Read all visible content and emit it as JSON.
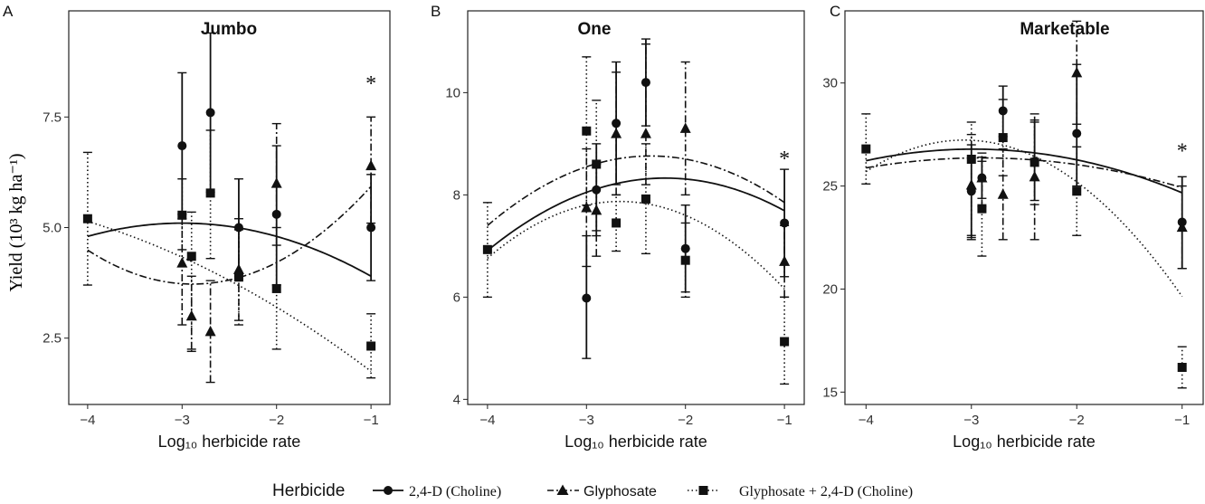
{
  "figure": {
    "y_axis_label": "Yield (10³ kg ha⁻¹)",
    "x_axis_label": "Log₁₀ herbicide rate"
  },
  "legend": {
    "title": "Herbicide",
    "entries": [
      {
        "label": "2,4-D (Choline)",
        "marker": "circle",
        "line": "solid"
      },
      {
        "label": "Glyphosate",
        "marker": "triangle",
        "line": "dashdot"
      },
      {
        "label": "Glyphosate + 2,4-D (Choline)",
        "marker": "square",
        "line": "dotted"
      }
    ]
  },
  "chart_data": [
    {
      "type": "scatter",
      "panel_letter": "A",
      "title": "Jumbo",
      "xlabel": "Log₁₀ herbicide rate",
      "ylabel": "Yield (10³ kg ha⁻¹)",
      "xlim": [
        -4.2,
        -0.8
      ],
      "ylim": [
        1.0,
        9.9
      ],
      "xticks": [
        -4,
        -3,
        -2,
        -1
      ],
      "xtick_labels": [
        "−4",
        "−3",
        "−2",
        "−1"
      ],
      "yticks": [
        2.5,
        5.0,
        7.5
      ],
      "ytick_labels": [
        "2.5",
        "5.0",
        "7.5"
      ],
      "annotations": [
        {
          "text": "*",
          "x": -1.0,
          "y": 8.3
        }
      ],
      "series": [
        {
          "name": "2,4-D (Choline)",
          "marker": "circle",
          "line": "solid",
          "points": [
            {
              "x": -3.0,
              "y": 6.85,
              "lo": 5.2,
              "hi": 8.5
            },
            {
              "x": -2.7,
              "y": 7.6,
              "lo": 5.8,
              "hi": 9.4
            },
            {
              "x": -2.4,
              "y": 5.0,
              "lo": 3.9,
              "hi": 6.1
            },
            {
              "x": -2.0,
              "y": 5.3,
              "lo": 3.7,
              "hi": 6.85
            },
            {
              "x": -1.0,
              "y": 5.0,
              "lo": 3.8,
              "hi": 6.2
            }
          ],
          "fit": [
            -0.3,
            -1.8,
            2.4
          ]
        },
        {
          "name": "Glyphosate",
          "marker": "triangle",
          "line": "dashdot",
          "points": [
            {
              "x": -3.0,
              "y": 4.2,
              "lo": 2.8,
              "hi": 5.3
            },
            {
              "x": -2.9,
              "y": 3.0,
              "lo": 2.25,
              "hi": 3.9
            },
            {
              "x": -2.7,
              "y": 2.65,
              "lo": 1.5,
              "hi": 3.8
            },
            {
              "x": -2.4,
              "y": 4.05,
              "lo": 2.9,
              "hi": 5.2
            },
            {
              "x": -2.0,
              "y": 6.0,
              "lo": 4.6,
              "hi": 7.35
            },
            {
              "x": -1.0,
              "y": 6.4,
              "lo": 5.1,
              "hi": 7.5
            }
          ],
          "fit": [
            0.62,
            3.58,
            8.89
          ]
        },
        {
          "name": "Glyphosate + 2,4-D (Choline)",
          "marker": "square",
          "line": "dotted",
          "points": [
            {
              "x": -4.0,
              "y": 5.2,
              "lo": 3.7,
              "hi": 6.7
            },
            {
              "x": -3.0,
              "y": 5.28,
              "lo": 4.5,
              "hi": 6.1
            },
            {
              "x": -2.9,
              "y": 4.35,
              "lo": 2.2,
              "hi": 5.35
            },
            {
              "x": -2.7,
              "y": 5.78,
              "lo": 4.3,
              "hi": 7.2
            },
            {
              "x": -2.4,
              "y": 3.88,
              "lo": 2.8,
              "hi": 4.95
            },
            {
              "x": -2.0,
              "y": 3.62,
              "lo": 2.25,
              "hi": 5.0
            },
            {
              "x": -1.0,
              "y": 2.32,
              "lo": 1.6,
              "hi": 3.05
            }
          ],
          "fit": [
            -0.16,
            -1.93,
            -0.02
          ]
        }
      ]
    },
    {
      "type": "scatter",
      "panel_letter": "B",
      "title": "One",
      "xlabel": "Log₁₀ herbicide rate",
      "ylabel": "",
      "xlim": [
        -4.2,
        -0.8
      ],
      "ylim": [
        3.9,
        11.6
      ],
      "xticks": [
        -4,
        -3,
        -2,
        -1
      ],
      "xtick_labels": [
        "−4",
        "−3",
        "−2",
        "−1"
      ],
      "yticks": [
        4,
        6,
        8,
        10
      ],
      "ytick_labels": [
        "4",
        "6",
        "8",
        "10"
      ],
      "annotations": [
        {
          "text": "*",
          "x": -1.0,
          "y": 8.75
        }
      ],
      "series": [
        {
          "name": "2,4-D (Choline)",
          "marker": "circle",
          "line": "solid",
          "points": [
            {
              "x": -3.0,
              "y": 5.98,
              "lo": 4.8,
              "hi": 7.2
            },
            {
              "x": -2.9,
              "y": 8.1,
              "lo": 7.2,
              "hi": 9.0
            },
            {
              "x": -2.7,
              "y": 9.4,
              "lo": 8.2,
              "hi": 10.6
            },
            {
              "x": -2.4,
              "y": 10.2,
              "lo": 9.35,
              "hi": 11.05
            },
            {
              "x": -2.0,
              "y": 6.95,
              "lo": 6.1,
              "hi": 7.8
            },
            {
              "x": -1.0,
              "y": 7.45,
              "lo": 6.4,
              "hi": 8.5
            }
          ],
          "fit": [
            -0.44,
            -1.94,
            6.19
          ]
        },
        {
          "name": "Glyphosate",
          "marker": "triangle",
          "line": "dashdot",
          "points": [
            {
              "x": -3.0,
              "y": 7.75,
              "lo": 6.6,
              "hi": 8.9
            },
            {
              "x": -2.9,
              "y": 7.7,
              "lo": 6.8,
              "hi": 8.6
            },
            {
              "x": -2.7,
              "y": 9.2,
              "lo": 8.0,
              "hi": 10.4
            },
            {
              "x": -2.4,
              "y": 9.2,
              "lo": 8.2,
              "hi": 10.95
            },
            {
              "x": -2.0,
              "y": 9.3,
              "lo": 8.0,
              "hi": 10.6
            },
            {
              "x": -1.0,
              "y": 6.7,
              "lo": 6.0,
              "hi": 7.4
            }
          ],
          "fit": [
            -0.5,
            -2.35,
            6.0
          ]
        },
        {
          "name": "Glyphosate + 2,4-D (Choline)",
          "marker": "square",
          "line": "dotted",
          "points": [
            {
              "x": -4.0,
              "y": 6.93,
              "lo": 6.0,
              "hi": 7.85
            },
            {
              "x": -3.0,
              "y": 9.25,
              "lo": 7.8,
              "hi": 10.7
            },
            {
              "x": -2.9,
              "y": 8.6,
              "lo": 7.3,
              "hi": 9.85
            },
            {
              "x": -2.7,
              "y": 7.45,
              "lo": 6.9,
              "hi": 8.0
            },
            {
              "x": -2.4,
              "y": 7.92,
              "lo": 6.85,
              "hi": 9.0
            },
            {
              "x": -2.0,
              "y": 6.72,
              "lo": 6.0,
              "hi": 7.45
            },
            {
              "x": -1.0,
              "y": 5.13,
              "lo": 4.3,
              "hi": 6.0
            }
          ],
          "fit": [
            -0.62,
            -3.3,
            3.48
          ]
        }
      ]
    },
    {
      "type": "scatter",
      "panel_letter": "C",
      "title": "Marketable",
      "xlabel": "Log₁₀ herbicide rate",
      "ylabel": "",
      "xlim": [
        -4.2,
        -0.8
      ],
      "ylim": [
        14.4,
        33.5
      ],
      "xticks": [
        -4,
        -3,
        -2,
        -1
      ],
      "xtick_labels": [
        "−4",
        "−3",
        "−2",
        "−1"
      ],
      "yticks": [
        15,
        20,
        25,
        30
      ],
      "ytick_labels": [
        "15",
        "20",
        "25",
        "30"
      ],
      "annotations": [
        {
          "text": "*",
          "x": -1.0,
          "y": 26.8
        }
      ],
      "series": [
        {
          "name": "2,4-D (Choline)",
          "marker": "circle",
          "line": "solid",
          "points": [
            {
              "x": -3.0,
              "y": 24.75,
              "lo": 22.5,
              "hi": 27.0
            },
            {
              "x": -2.9,
              "y": 25.4,
              "lo": 24.4,
              "hi": 26.4
            },
            {
              "x": -2.7,
              "y": 28.65,
              "lo": 27.4,
              "hi": 29.85
            },
            {
              "x": -2.4,
              "y": 26.2,
              "lo": 24.3,
              "hi": 28.1
            },
            {
              "x": -2.0,
              "y": 27.55,
              "lo": 25.0,
              "hi": 30.9
            },
            {
              "x": -1.0,
              "y": 23.25,
              "lo": 21.0,
              "hi": 25.45
            }
          ],
          "fit": [
            -0.54,
            -3.22,
            21.99
          ]
        },
        {
          "name": "Glyphosate",
          "marker": "triangle",
          "line": "dashdot",
          "points": [
            {
              "x": -3.0,
              "y": 25.05,
              "lo": 22.6,
              "hi": 27.5
            },
            {
              "x": -2.9,
              "y": 25.4,
              "lo": 24.0,
              "hi": 26.6
            },
            {
              "x": -2.7,
              "y": 24.6,
              "lo": 22.4,
              "hi": 26.8
            },
            {
              "x": -2.4,
              "y": 25.45,
              "lo": 22.4,
              "hi": 28.5
            },
            {
              "x": -2.0,
              "y": 30.5,
              "lo": 28.0,
              "hi": 33.0
            },
            {
              "x": -1.0,
              "y": 23.0,
              "lo": 21.0,
              "hi": 25.0
            }
          ],
          "fit": [
            -0.4,
            -2.32,
            23.0
          ]
        },
        {
          "name": "Glyphosate + 2,4-D (Choline)",
          "marker": "square",
          "line": "dotted",
          "points": [
            {
              "x": -4.0,
              "y": 26.8,
              "lo": 25.1,
              "hi": 28.5
            },
            {
              "x": -3.0,
              "y": 26.3,
              "lo": 22.4,
              "hi": 28.1
            },
            {
              "x": -2.9,
              "y": 23.9,
              "lo": 21.6,
              "hi": 26.2
            },
            {
              "x": -2.7,
              "y": 27.35,
              "lo": 25.5,
              "hi": 29.2
            },
            {
              "x": -2.4,
              "y": 26.15,
              "lo": 24.1,
              "hi": 28.2
            },
            {
              "x": -2.0,
              "y": 24.75,
              "lo": 22.6,
              "hi": 26.9
            },
            {
              "x": -1.0,
              "y": 16.2,
              "lo": 15.2,
              "hi": 17.2
            }
          ],
          "fit": [
            -1.77,
            -10.87,
            10.54
          ]
        }
      ]
    }
  ]
}
